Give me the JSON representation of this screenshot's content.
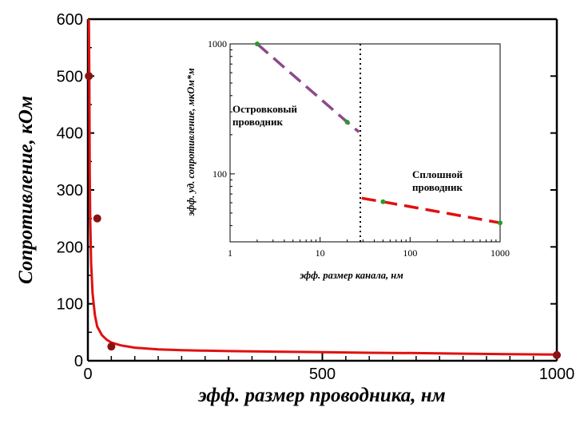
{
  "chart_data": [
    {
      "type": "line",
      "xlabel": "эфф. размер проводника, нм",
      "ylabel": "Сопротивление, кОм",
      "xlim": [
        0,
        1000
      ],
      "ylim": [
        0,
        600
      ],
      "x_ticks": [
        "0",
        "500",
        "1000"
      ],
      "y_ticks": [
        "0",
        "100",
        "200",
        "300",
        "400",
        "500",
        "600"
      ],
      "colors": {
        "curve": "#e01010",
        "points": "#8b1010"
      },
      "series": [
        {
          "x": [
            2,
            3,
            4,
            5,
            7,
            10,
            15,
            20,
            30,
            40,
            50,
            70,
            100,
            150,
            200,
            300,
            400,
            500,
            600,
            700,
            800,
            900,
            1000
          ],
          "values": [
            600,
            500,
            330,
            250,
            170,
            118,
            80,
            60,
            45,
            37,
            32,
            27,
            23,
            20,
            18.5,
            17,
            16,
            15,
            14,
            13.5,
            12.5,
            11.5,
            11
          ]
        }
      ],
      "points": [
        {
          "x": 2,
          "y": 500
        },
        {
          "x": 20,
          "y": 250
        },
        {
          "x": 50,
          "y": 25
        },
        {
          "x": 1000,
          "y": 10
        }
      ]
    },
    {
      "type": "line",
      "xlabel": "эфф. размер канала, нм",
      "ylabel": "эфф. уд. сопротивление, мкОм*м",
      "xscale": "log",
      "yscale": "log",
      "xlim": [
        1,
        1000
      ],
      "ylim": [
        30,
        1000
      ],
      "x_ticks": [
        "1",
        "10",
        "100",
        "1000"
      ],
      "y_ticks": [
        "100",
        "1000"
      ],
      "threshold_x": 28,
      "colors": {
        "island": "#8b4a8b",
        "continuous": "#e01010",
        "points": "#2a9a2a"
      },
      "series": [
        {
          "x": [
            2,
            20,
            27
          ],
          "values": [
            1000,
            250,
            210
          ]
        },
        {
          "x": [
            29,
            50,
            1000
          ],
          "values": [
            65,
            61,
            42
          ]
        }
      ],
      "points": [
        {
          "x": 2,
          "y": 1000
        },
        {
          "x": 20,
          "y": 250
        },
        {
          "x": 50,
          "y": 61
        },
        {
          "x": 1000,
          "y": 42
        }
      ],
      "annotations": [
        {
          "lines": [
            "Островковый",
            "проводник"
          ]
        },
        {
          "lines": [
            "Сплошной",
            "проводник"
          ]
        }
      ]
    }
  ]
}
